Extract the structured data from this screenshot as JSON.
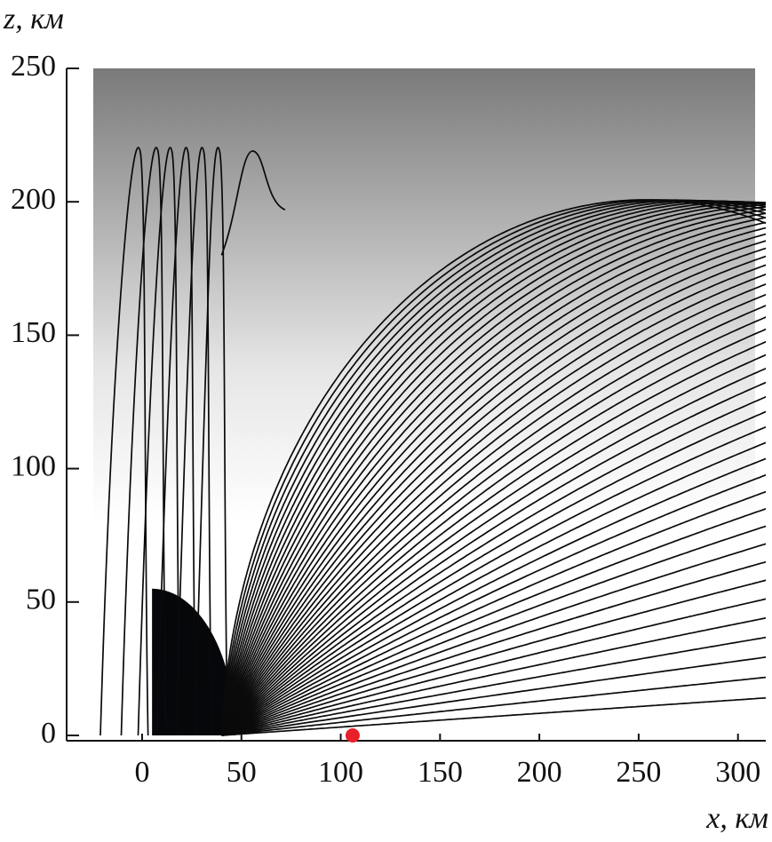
{
  "chart_data": {
    "type": "ray-plot",
    "x_label": "x, км",
    "y_label": "z, км",
    "xlim": [
      -38,
      314
    ],
    "ylim": [
      -2,
      250
    ],
    "xticks": [
      0,
      50,
      100,
      150,
      200,
      250,
      300
    ],
    "yticks": [
      0,
      50,
      100,
      150,
      200,
      250
    ],
    "marker": {
      "x": 106,
      "z": 0,
      "color": "#e8202a"
    }
  }
}
